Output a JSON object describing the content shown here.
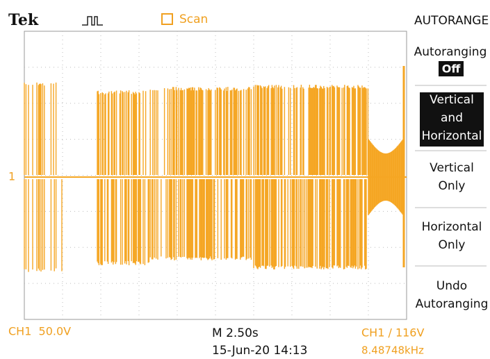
{
  "header": {
    "brand": "Tek",
    "mode": "Scan",
    "menu_title": "AUTORANGE"
  },
  "menu": {
    "autoranging": {
      "label": "Autoranging",
      "state": "Off"
    },
    "items": [
      {
        "lines": [
          "Vertical",
          "and",
          "Horizontal"
        ]
      },
      {
        "lines": [
          "Vertical",
          "Only"
        ]
      },
      {
        "lines": [
          "Horizontal",
          "Only"
        ]
      },
      {
        "lines": [
          "Undo",
          "Autoranging"
        ]
      }
    ]
  },
  "channel_marker": "1",
  "footer": {
    "ch1_scale": "CH1  50.0V",
    "timebase": "M 2.50s",
    "datetime": "15-Jun-20 14:13",
    "trigger": "CH1 / 116V",
    "frequency": "8.48748kHz"
  }
}
